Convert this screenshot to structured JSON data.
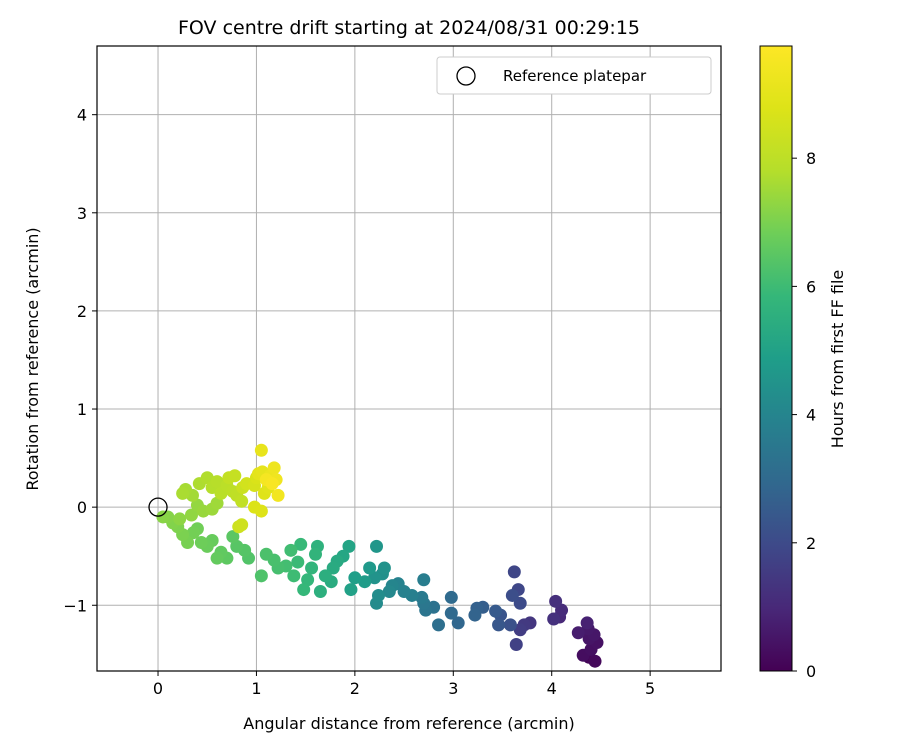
{
  "chart_data": {
    "type": "scatter",
    "title": "FOV centre drift starting at 2024/08/31 00:29:15",
    "xlabel": "Angular distance from reference (arcmin)",
    "ylabel": "Rotation from reference (arcmin)",
    "xlim": [
      -0.62,
      5.72
    ],
    "ylim": [
      -1.67,
      4.7
    ],
    "xticks": [
      0,
      1,
      2,
      3,
      4,
      5
    ],
    "yticks": [
      -1,
      0,
      1,
      2,
      3,
      4
    ],
    "xtick_labels": [
      "0",
      "1",
      "2",
      "3",
      "4",
      "5"
    ],
    "ytick_labels": [
      "−1",
      "0",
      "1",
      "2",
      "3",
      "4"
    ],
    "grid": true,
    "legend": {
      "position": "top-right",
      "entries": [
        "Reference platepar"
      ]
    },
    "reference_point": {
      "x": 0,
      "y": 0,
      "marker": "open-circle"
    },
    "colorbar": {
      "label": "Hours from first FF file",
      "colormap": "viridis",
      "range": [
        0,
        9.75
      ],
      "ticks": [
        0,
        2,
        4,
        6,
        8
      ],
      "tick_labels": [
        "0",
        "2",
        "4",
        "6",
        "8"
      ]
    },
    "series": [
      {
        "color_by": "hours",
        "points": [
          {
            "x": 4.38,
            "y": -1.53,
            "h": 0.1
          },
          {
            "x": 4.44,
            "y": -1.57,
            "h": 0.2
          },
          {
            "x": 4.32,
            "y": -1.51,
            "h": 0.3
          },
          {
            "x": 4.4,
            "y": -1.45,
            "h": 0.35
          },
          {
            "x": 4.46,
            "y": -1.38,
            "h": 0.4
          },
          {
            "x": 4.38,
            "y": -1.34,
            "h": 0.5
          },
          {
            "x": 4.43,
            "y": -1.3,
            "h": 0.55
          },
          {
            "x": 4.37,
            "y": -1.24,
            "h": 0.6
          },
          {
            "x": 4.27,
            "y": -1.28,
            "h": 0.7
          },
          {
            "x": 4.36,
            "y": -1.18,
            "h": 0.8
          },
          {
            "x": 4.08,
            "y": -1.12,
            "h": 1.0
          },
          {
            "x": 4.1,
            "y": -1.05,
            "h": 1.1
          },
          {
            "x": 4.04,
            "y": -0.96,
            "h": 1.2
          },
          {
            "x": 4.02,
            "y": -1.14,
            "h": 1.25
          },
          {
            "x": 3.78,
            "y": -1.18,
            "h": 1.4
          },
          {
            "x": 3.72,
            "y": -1.2,
            "h": 1.5
          },
          {
            "x": 3.68,
            "y": -1.25,
            "h": 1.6
          },
          {
            "x": 3.64,
            "y": -1.4,
            "h": 1.7
          },
          {
            "x": 3.62,
            "y": -0.66,
            "h": 1.85
          },
          {
            "x": 3.66,
            "y": -0.84,
            "h": 1.9
          },
          {
            "x": 3.68,
            "y": -0.98,
            "h": 2.0
          },
          {
            "x": 3.6,
            "y": -0.9,
            "h": 2.1
          },
          {
            "x": 3.58,
            "y": -1.2,
            "h": 2.2
          },
          {
            "x": 3.48,
            "y": -1.1,
            "h": 2.3
          },
          {
            "x": 3.46,
            "y": -1.2,
            "h": 2.4
          },
          {
            "x": 3.43,
            "y": -1.06,
            "h": 2.5
          },
          {
            "x": 3.3,
            "y": -1.02,
            "h": 2.6
          },
          {
            "x": 3.24,
            "y": -1.03,
            "h": 2.7
          },
          {
            "x": 3.22,
            "y": -1.1,
            "h": 2.8
          },
          {
            "x": 3.05,
            "y": -1.18,
            "h": 2.9
          },
          {
            "x": 2.98,
            "y": -1.08,
            "h": 3.0
          },
          {
            "x": 2.98,
            "y": -0.92,
            "h": 3.05
          },
          {
            "x": 2.85,
            "y": -1.2,
            "h": 3.2
          },
          {
            "x": 2.8,
            "y": -1.02,
            "h": 3.3
          },
          {
            "x": 2.72,
            "y": -1.05,
            "h": 3.4
          },
          {
            "x": 2.7,
            "y": -0.98,
            "h": 3.5
          },
          {
            "x": 2.68,
            "y": -0.92,
            "h": 3.6
          },
          {
            "x": 2.7,
            "y": -0.74,
            "h": 3.7
          },
          {
            "x": 2.58,
            "y": -0.9,
            "h": 3.8
          },
          {
            "x": 2.5,
            "y": -0.86,
            "h": 3.85
          },
          {
            "x": 2.44,
            "y": -0.78,
            "h": 3.9
          },
          {
            "x": 2.38,
            "y": -0.8,
            "h": 4.0
          },
          {
            "x": 2.35,
            "y": -0.86,
            "h": 4.1
          },
          {
            "x": 2.22,
            "y": -0.98,
            "h": 4.2
          },
          {
            "x": 2.24,
            "y": -0.9,
            "h": 4.3
          },
          {
            "x": 2.28,
            "y": -0.68,
            "h": 4.4
          },
          {
            "x": 2.3,
            "y": -0.62,
            "h": 4.45
          },
          {
            "x": 2.2,
            "y": -0.72,
            "h": 4.5
          },
          {
            "x": 2.22,
            "y": -0.4,
            "h": 4.6
          },
          {
            "x": 2.15,
            "y": -0.62,
            "h": 4.7
          },
          {
            "x": 2.1,
            "y": -0.76,
            "h": 4.8
          },
          {
            "x": 2.0,
            "y": -0.72,
            "h": 4.9
          },
          {
            "x": 1.96,
            "y": -0.84,
            "h": 5.0
          },
          {
            "x": 1.94,
            "y": -0.4,
            "h": 5.1
          },
          {
            "x": 1.88,
            "y": -0.5,
            "h": 5.2
          },
          {
            "x": 1.82,
            "y": -0.55,
            "h": 5.3
          },
          {
            "x": 1.78,
            "y": -0.62,
            "h": 5.35
          },
          {
            "x": 1.76,
            "y": -0.76,
            "h": 5.4
          },
          {
            "x": 1.7,
            "y": -0.7,
            "h": 5.5
          },
          {
            "x": 1.65,
            "y": -0.86,
            "h": 5.55
          },
          {
            "x": 1.62,
            "y": -0.4,
            "h": 5.6
          },
          {
            "x": 1.6,
            "y": -0.48,
            "h": 5.7
          },
          {
            "x": 1.56,
            "y": -0.62,
            "h": 5.75
          },
          {
            "x": 1.52,
            "y": -0.74,
            "h": 5.8
          },
          {
            "x": 1.48,
            "y": -0.84,
            "h": 5.85
          },
          {
            "x": 1.45,
            "y": -0.38,
            "h": 5.9
          },
          {
            "x": 1.42,
            "y": -0.56,
            "h": 5.95
          },
          {
            "x": 1.38,
            "y": -0.7,
            "h": 6.0
          },
          {
            "x": 1.35,
            "y": -0.44,
            "h": 6.05
          },
          {
            "x": 1.3,
            "y": -0.6,
            "h": 6.1
          },
          {
            "x": 1.22,
            "y": -0.62,
            "h": 6.15
          },
          {
            "x": 1.18,
            "y": -0.54,
            "h": 6.2
          },
          {
            "x": 1.1,
            "y": -0.48,
            "h": 6.25
          },
          {
            "x": 1.05,
            "y": -0.7,
            "h": 6.3
          },
          {
            "x": 0.92,
            "y": -0.52,
            "h": 6.35
          },
          {
            "x": 0.88,
            "y": -0.44,
            "h": 6.4
          },
          {
            "x": 0.8,
            "y": -0.4,
            "h": 6.45
          },
          {
            "x": 0.76,
            "y": -0.3,
            "h": 6.5
          },
          {
            "x": 0.7,
            "y": -0.52,
            "h": 6.55
          },
          {
            "x": 0.64,
            "y": -0.46,
            "h": 6.6
          },
          {
            "x": 0.6,
            "y": -0.52,
            "h": 6.65
          },
          {
            "x": 0.55,
            "y": -0.34,
            "h": 6.7
          },
          {
            "x": 0.5,
            "y": -0.4,
            "h": 6.75
          },
          {
            "x": 0.44,
            "y": -0.36,
            "h": 6.8
          },
          {
            "x": 0.4,
            "y": -0.22,
            "h": 6.85
          },
          {
            "x": 0.36,
            "y": -0.26,
            "h": 6.9
          },
          {
            "x": 0.3,
            "y": -0.36,
            "h": 6.95
          },
          {
            "x": 0.25,
            "y": -0.28,
            "h": 7.0
          },
          {
            "x": 0.2,
            "y": -0.2,
            "h": 7.05
          },
          {
            "x": 0.15,
            "y": -0.16,
            "h": 7.1
          },
          {
            "x": 0.1,
            "y": -0.1,
            "h": 7.15
          },
          {
            "x": 0.05,
            "y": -0.1,
            "h": 7.2
          },
          {
            "x": 0.22,
            "y": -0.12,
            "h": 7.25
          },
          {
            "x": 0.34,
            "y": -0.08,
            "h": 7.3
          },
          {
            "x": 0.4,
            "y": 0.02,
            "h": 7.35
          },
          {
            "x": 0.46,
            "y": -0.04,
            "h": 7.4
          },
          {
            "x": 0.55,
            "y": -0.02,
            "h": 7.45
          },
          {
            "x": 0.6,
            "y": 0.04,
            "h": 7.5
          },
          {
            "x": 0.35,
            "y": 0.12,
            "h": 7.55
          },
          {
            "x": 0.28,
            "y": 0.18,
            "h": 7.6
          },
          {
            "x": 0.25,
            "y": 0.14,
            "h": 7.65
          },
          {
            "x": 0.42,
            "y": 0.24,
            "h": 7.7
          },
          {
            "x": 0.5,
            "y": 0.3,
            "h": 7.75
          },
          {
            "x": 0.55,
            "y": 0.2,
            "h": 7.8
          },
          {
            "x": 0.6,
            "y": 0.26,
            "h": 7.85
          },
          {
            "x": 0.64,
            "y": 0.14,
            "h": 7.9
          },
          {
            "x": 0.7,
            "y": 0.22,
            "h": 7.95
          },
          {
            "x": 0.76,
            "y": 0.16,
            "h": 8.0
          },
          {
            "x": 0.8,
            "y": 0.12,
            "h": 8.05
          },
          {
            "x": 0.85,
            "y": 0.06,
            "h": 8.1
          },
          {
            "x": 0.72,
            "y": 0.3,
            "h": 8.15
          },
          {
            "x": 0.78,
            "y": 0.32,
            "h": 8.2
          },
          {
            "x": 0.86,
            "y": 0.2,
            "h": 8.3
          },
          {
            "x": 0.82,
            "y": -0.2,
            "h": 8.35
          },
          {
            "x": 0.85,
            "y": -0.18,
            "h": 8.4
          },
          {
            "x": 0.9,
            "y": 0.24,
            "h": 8.5
          },
          {
            "x": 0.98,
            "y": 0.22,
            "h": 8.6
          },
          {
            "x": 1.0,
            "y": 0.3,
            "h": 8.7
          },
          {
            "x": 0.98,
            "y": 0.0,
            "h": 8.75
          },
          {
            "x": 1.05,
            "y": -0.04,
            "h": 8.8
          },
          {
            "x": 1.08,
            "y": 0.14,
            "h": 8.85
          },
          {
            "x": 1.12,
            "y": 0.2,
            "h": 8.9
          },
          {
            "x": 1.02,
            "y": 0.34,
            "h": 9.0
          },
          {
            "x": 1.06,
            "y": 0.36,
            "h": 9.05
          },
          {
            "x": 1.05,
            "y": 0.58,
            "h": 9.1
          },
          {
            "x": 1.14,
            "y": 0.32,
            "h": 9.2
          },
          {
            "x": 1.18,
            "y": 0.4,
            "h": 9.3
          },
          {
            "x": 1.2,
            "y": 0.28,
            "h": 9.35
          },
          {
            "x": 1.22,
            "y": 0.12,
            "h": 9.4
          },
          {
            "x": 1.1,
            "y": 0.28,
            "h": 9.5
          },
          {
            "x": 1.16,
            "y": 0.24,
            "h": 9.6
          }
        ]
      }
    ]
  }
}
